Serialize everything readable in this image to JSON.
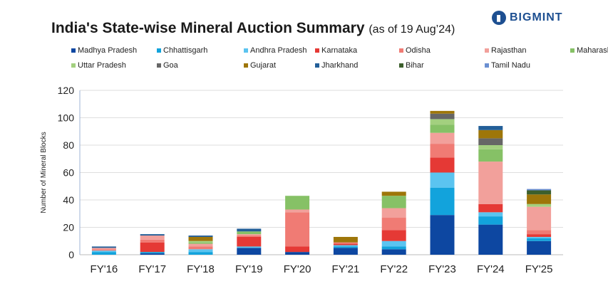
{
  "title": "India's State-wise Mineral Auction Summary",
  "subtitle": "(as of 19 Aug’24)",
  "logo": "BIGMINT",
  "chart_data": {
    "type": "bar",
    "stacked": true,
    "ylabel": "Number of Mineral Blocks",
    "xlabel": "",
    "ylim": [
      0,
      120
    ],
    "yticks": [
      0,
      20,
      40,
      60,
      80,
      100,
      120
    ],
    "grid": true,
    "legend_position": "top",
    "categories": [
      "FY'16",
      "FY'17",
      "FY'18",
      "FY'19",
      "FY'20",
      "FY'21",
      "FY'22",
      "FY'23",
      "FY'24",
      "FY'25"
    ],
    "series": [
      {
        "name": "Madhya Pradesh",
        "color": "#0d47a1",
        "values": [
          0,
          1,
          0,
          5,
          2,
          5,
          4,
          29,
          22,
          10
        ]
      },
      {
        "name": "Chhattisgarh",
        "color": "#12a3dc",
        "values": [
          2,
          1,
          2,
          0,
          0,
          1,
          2,
          20,
          6,
          2
        ]
      },
      {
        "name": "Andhra Pradesh",
        "color": "#5bc4f0",
        "values": [
          1,
          0,
          2,
          1,
          0,
          1,
          4,
          11,
          3,
          1
        ]
      },
      {
        "name": "Karnataka",
        "color": "#e53935",
        "values": [
          0,
          7,
          0,
          7,
          4,
          1,
          8,
          11,
          6,
          2
        ]
      },
      {
        "name": "Odisha",
        "color": "#f07b74",
        "values": [
          1,
          2,
          2,
          1,
          25,
          1,
          9,
          10,
          0,
          3
        ]
      },
      {
        "name": "Rajasthan",
        "color": "#f2a09b",
        "values": [
          1,
          3,
          2,
          1,
          2,
          0,
          7,
          8,
          31,
          17
        ]
      },
      {
        "name": "Maharashtra",
        "color": "#86c166",
        "values": [
          0,
          0,
          1,
          2,
          10,
          0,
          9,
          6,
          9,
          0
        ]
      },
      {
        "name": "Uttar Pradesh",
        "color": "#a3d07f",
        "values": [
          0,
          0,
          1,
          0,
          0,
          0,
          0,
          4,
          3,
          2
        ]
      },
      {
        "name": "Goa",
        "color": "#666666",
        "values": [
          0,
          0,
          0,
          0,
          0,
          0,
          0,
          4,
          5,
          0
        ]
      },
      {
        "name": "Gujarat",
        "color": "#9e7609",
        "values": [
          0,
          0,
          3,
          0,
          0,
          4,
          3,
          2,
          6,
          7
        ]
      },
      {
        "name": "Jharkhand",
        "color": "#235f98",
        "values": [
          1,
          1,
          1,
          2,
          0,
          0,
          0,
          0,
          3,
          0
        ]
      },
      {
        "name": "Bihar",
        "color": "#3c5f2c",
        "values": [
          0,
          0,
          0,
          0,
          0,
          0,
          0,
          0,
          0,
          3
        ]
      },
      {
        "name": "Tamil Nadu",
        "color": "#6b8fd1",
        "values": [
          0,
          0,
          0,
          0,
          0,
          0,
          0,
          0,
          0,
          1
        ]
      }
    ]
  }
}
